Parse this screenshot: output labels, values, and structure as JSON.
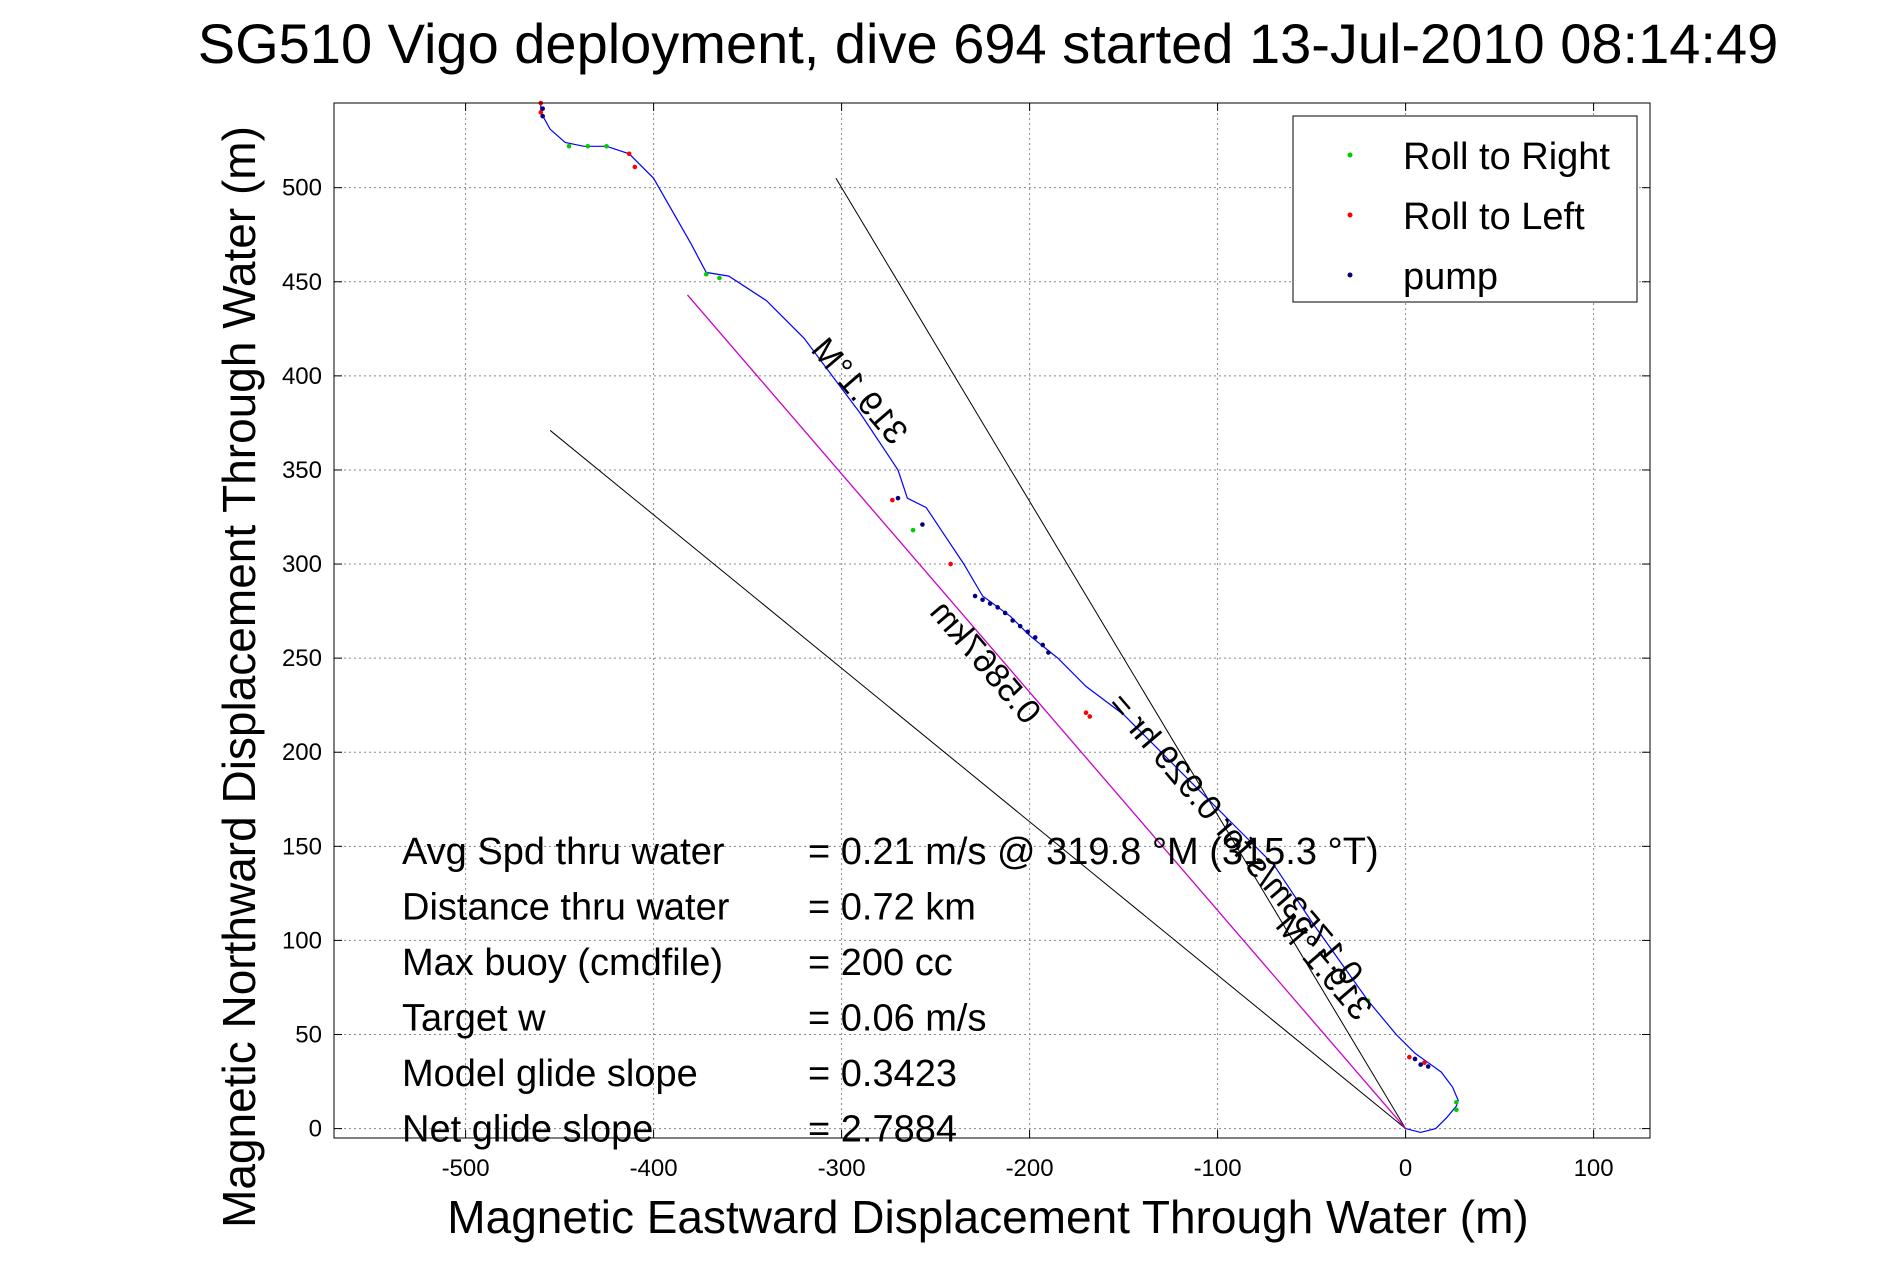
{
  "chart_data": {
    "type": "line",
    "title": "SG510 Vigo deployment, dive 694 started 13-Jul-2010 08:14:49",
    "xlabel": "Magnetic Eastward Displacement Through Water (m)",
    "ylabel": "Magnetic Northward Displacement Through Water (m)",
    "xlim": [
      -570,
      130
    ],
    "ylim": [
      -5,
      545
    ],
    "xticks": [
      -500,
      -400,
      -300,
      -200,
      -100,
      0,
      100
    ],
    "yticks": [
      0,
      50,
      100,
      150,
      200,
      250,
      300,
      350,
      400,
      450,
      500
    ],
    "grid": true,
    "legend": {
      "position": "top-right",
      "entries": [
        {
          "label": "Roll to Right",
          "color": "#00cc00"
        },
        {
          "label": "Roll to Left",
          "color": "#ff0000"
        },
        {
          "label": "pump",
          "color": "#000080"
        }
      ]
    },
    "colors": {
      "track": "#0000ff",
      "average_line": "#cc00cc",
      "sector_lines": "#000000"
    },
    "track": {
      "x": [
        0,
        8,
        16,
        22,
        27,
        28,
        25,
        19,
        12,
        5,
        -5,
        -20,
        -50,
        -70,
        -90,
        -110,
        -130,
        -150,
        -170,
        -185,
        -200,
        -210,
        -225,
        -235,
        -245,
        -255,
        -265,
        -270,
        -290,
        -320,
        -340,
        -360,
        -372,
        -380,
        -400,
        -413,
        -425,
        -437,
        -447,
        -455,
        -460,
        -460
      ],
      "y": [
        0,
        -2,
        0,
        6,
        12,
        15,
        22,
        30,
        35,
        40,
        50,
        68,
        110,
        140,
        160,
        180,
        200,
        220,
        235,
        250,
        262,
        272,
        283,
        300,
        315,
        330,
        335,
        350,
        380,
        420,
        440,
        453,
        455,
        470,
        505,
        518,
        522,
        522,
        524,
        531,
        540,
        546
      ]
    },
    "roll_right": {
      "x": [
        -425,
        -435,
        -445,
        -372,
        -365,
        -262,
        -20,
        27,
        27
      ],
      "y": [
        522,
        522,
        522,
        454,
        452,
        318,
        68,
        10,
        14
      ]
    },
    "roll_left": {
      "x": [
        -460,
        -460,
        -413,
        -410,
        -273,
        -242,
        -170,
        -168,
        2,
        10
      ],
      "y": [
        545,
        540,
        518,
        511,
        334,
        300,
        221,
        219,
        38,
        35
      ]
    },
    "pump": {
      "x": [
        -459,
        -459,
        -229,
        -225,
        -221,
        -217,
        -213,
        -209,
        -205,
        -201,
        -197,
        -193,
        -190,
        -270,
        -257,
        5,
        8,
        12
      ],
      "y": [
        542,
        538,
        283,
        281,
        279,
        277,
        274,
        270,
        267,
        264,
        261,
        257,
        253,
        335,
        321,
        37,
        34,
        33
      ]
    },
    "average_line": {
      "x": [
        0,
        -382
      ],
      "y": [
        0,
        443
      ]
    },
    "sector_lines": [
      {
        "x": [
          0,
          -303
        ],
        "y": [
          0,
          505
        ]
      },
      {
        "x": [
          0,
          -455
        ],
        "y": [
          0,
          371
        ]
      }
    ],
    "rotated_labels": [
      {
        "text": "319.1°M",
        "x": -295,
        "y": 388,
        "angle": 49.5
      },
      {
        "text": "0.5867km",
        "x": -228,
        "y": 244,
        "angle": 49.5
      },
      {
        "text": "319.1°M",
        "x": -48,
        "y": 82,
        "angle": 49.5
      },
      {
        "text": "0.1753m/s for 0.929 hr =",
        "x": -95,
        "y": 150,
        "angle": 49.5
      }
    ],
    "annotations": [
      {
        "label": "Avg Spd thru water",
        "value": "=  0.21 m/s @ 319.8 °M (315.3 °T)"
      },
      {
        "label": "Distance thru water",
        "value": "=  0.72 km"
      },
      {
        "label": "Max buoy (cmdfile)",
        "value": "= 200 cc"
      },
      {
        "label": "Target w",
        "value": "= 0.06 m/s"
      },
      {
        "label": "Model glide slope",
        "value": "= 0.3423"
      },
      {
        "label": "Net glide slope",
        "value": "= 2.7884"
      }
    ]
  }
}
